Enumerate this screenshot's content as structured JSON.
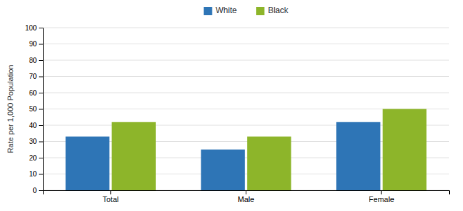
{
  "chart_data": {
    "type": "bar",
    "categories": [
      "Total",
      "Male",
      "Female"
    ],
    "series": [
      {
        "name": "White",
        "color": "#2E75B6",
        "values": [
          33,
          25,
          42
        ]
      },
      {
        "name": "Black",
        "color": "#8DB52A",
        "values": [
          42,
          33,
          50
        ]
      }
    ],
    "ylabel": "Rate per 1,000 Population",
    "ylim": [
      0,
      100
    ],
    "yticks": [
      0,
      10,
      20,
      30,
      40,
      50,
      60,
      70,
      80,
      90,
      100
    ],
    "grid": true,
    "legend": "top"
  }
}
